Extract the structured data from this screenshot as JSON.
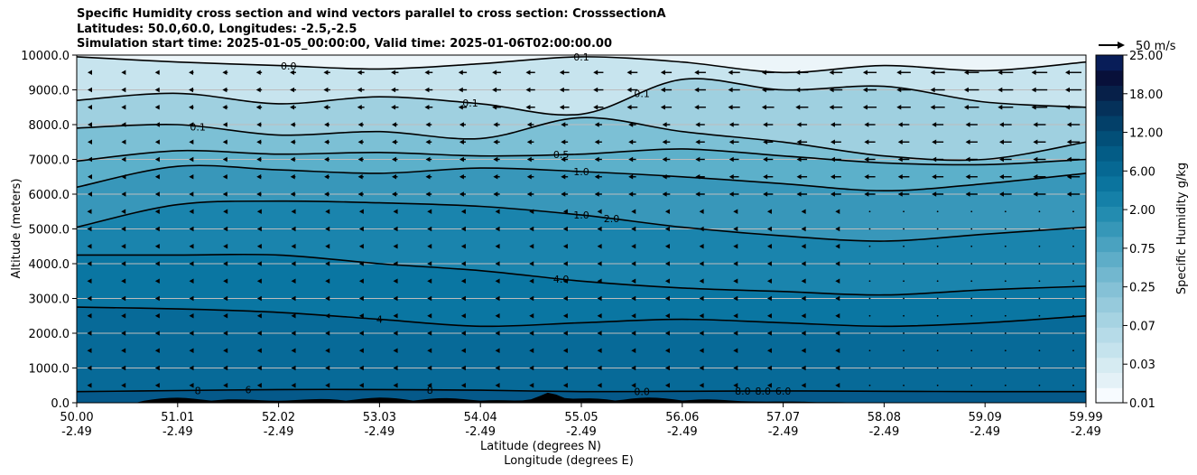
{
  "chart_data": {
    "type": "contour",
    "title": "Specific Humidity cross section and wind vectors parallel to cross section: CrosssectionA",
    "subtitle_lines": [
      "Latitudes: 50.0,60.0, Longitudes: -2.5,-2.5",
      "Simulation start time: 2025-01-05_00:00:00, Valid time: 2025-01-06T02:00:00.00"
    ],
    "ylabel": "Altitude (meters)",
    "xlabel_lines": [
      "Latitude (degrees N)",
      "Longitude (degrees E)"
    ],
    "ylim": [
      0,
      10000
    ],
    "y_ticks": [
      "0.0",
      "1000.0",
      "2000.0",
      "3000.0",
      "4000.0",
      "5000.0",
      "6000.0",
      "7000.0",
      "8000.0",
      "9000.0",
      "10000.0"
    ],
    "x_ticks": [
      {
        "lat": "50.00",
        "lon": "-2.49"
      },
      {
        "lat": "51.01",
        "lon": "-2.49"
      },
      {
        "lat": "52.02",
        "lon": "-2.49"
      },
      {
        "lat": "53.03",
        "lon": "-2.49"
      },
      {
        "lat": "54.04",
        "lon": "-2.49"
      },
      {
        "lat": "55.05",
        "lon": "-2.49"
      },
      {
        "lat": "56.06",
        "lon": "-2.49"
      },
      {
        "lat": "57.07",
        "lon": "-2.49"
      },
      {
        "lat": "58.08",
        "lon": "-2.49"
      },
      {
        "lat": "59.09",
        "lon": "-2.49"
      },
      {
        "lat": "59.99",
        "lon": "-2.49"
      }
    ],
    "xlim": [
      50.0,
      59.99
    ],
    "horizontal_grid": true,
    "colorbar": {
      "label": "Specific Humidity g/kg",
      "tick_labels": [
        "0.01",
        "0.03",
        "0.07",
        "0.25",
        "0.75",
        "2.00",
        "6.00",
        "12.00",
        "18.00",
        "25.00"
      ],
      "colors": [
        "#f7fbff",
        "#e4f1f7",
        "#d6ebf2",
        "#c5e3ed",
        "#b6dbe8",
        "#a6d3e2",
        "#96cadc",
        "#85c1d6",
        "#72b7cf",
        "#5eadc8",
        "#4aa2c0",
        "#3697b8",
        "#238cb0",
        "#1580a8",
        "#0b749e",
        "#066893",
        "#035c86",
        "#024f78",
        "#034069",
        "#05315a",
        "#072049",
        "#08103a",
        "#081d58"
      ]
    },
    "wind_key": "50 m/s",
    "contour_levels": [
      "0.0",
      "0.1",
      "0.1",
      "0.1",
      "0.1",
      "0.5",
      "1.0",
      "1.0",
      "2.0",
      "4.0",
      "4",
      "8",
      "8",
      "6",
      "0.0",
      "8.0",
      "8.0",
      "6.0"
    ],
    "isolines": [
      {
        "level": 0.0,
        "altitude": [
          9950,
          9800,
          9700,
          9600,
          9750,
          9950,
          9800,
          9500,
          9700,
          9550,
          9800
        ]
      },
      {
        "level": 0.1,
        "altitude": [
          8700,
          8900,
          8600,
          8800,
          8600,
          8300,
          9300,
          9000,
          9100,
          8650,
          8500
        ]
      },
      {
        "level": 0.1,
        "altitude": [
          7900,
          8000,
          7700,
          7800,
          7600,
          8200,
          7800,
          7500,
          7100,
          7000,
          7500
        ]
      },
      {
        "level": 0.1,
        "altitude": [
          6950,
          7250,
          7150,
          7200,
          7100,
          7150,
          7300,
          7100,
          6900,
          6850,
          7000
        ]
      },
      {
        "level": 0.5,
        "altitude": [
          6200,
          6800,
          6700,
          6600,
          6750,
          6650,
          6500,
          6300,
          6100,
          6300,
          6600
        ]
      },
      {
        "level": 1.0,
        "altitude": [
          5050,
          5700,
          5800,
          5750,
          5650,
          5400,
          5050,
          4800,
          4650,
          4850,
          5050
        ]
      },
      {
        "level": 2.0,
        "altitude": [
          4250,
          4250,
          4250,
          4000,
          3800,
          3500,
          3300,
          3200,
          3100,
          3250,
          3350
        ]
      },
      {
        "level": 4.0,
        "altitude": [
          2750,
          2700,
          2600,
          2400,
          2200,
          2300,
          2400,
          2300,
          2200,
          2300,
          2500
        ]
      },
      {
        "level": 8.0,
        "altitude": [
          320,
          350,
          380,
          380,
          360,
          320,
          330,
          340,
          330,
          320,
          320
        ]
      }
    ],
    "wind_rows_altitude": [
      9500,
      9000,
      8500,
      8000,
      7500,
      7000,
      6500,
      6000,
      5500,
      5000,
      4500,
      4000,
      3500,
      3000,
      2500,
      2000,
      1500,
      1000,
      500
    ],
    "terrain": "black filled orography along the surface"
  }
}
